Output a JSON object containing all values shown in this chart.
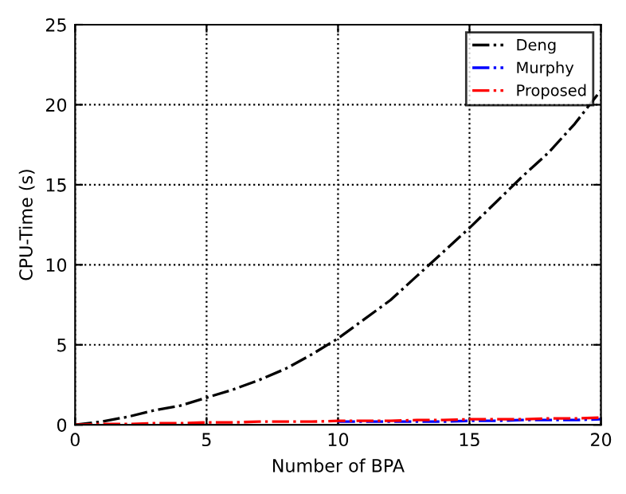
{
  "chart_data": {
    "type": "line",
    "xlabel": "Number of BPA",
    "ylabel": "CPU-Time (s)",
    "x": [
      0,
      1,
      2,
      3,
      4,
      5,
      6,
      7,
      8,
      9,
      10,
      11,
      12,
      13,
      14,
      15,
      16,
      17,
      18,
      19,
      20
    ],
    "series": [
      {
        "name": "Deng",
        "color": "#000000",
        "values": [
          0,
          0.2,
          0.5,
          0.9,
          1.2,
          1.7,
          2.2,
          2.8,
          3.5,
          4.4,
          5.4,
          6.6,
          7.8,
          9.3,
          10.8,
          12.3,
          13.9,
          15.5,
          17.0,
          18.8,
          20.9
        ]
      },
      {
        "name": "Murphy",
        "color": "#0000ff",
        "values": [
          null,
          null,
          null,
          null,
          null,
          null,
          null,
          null,
          null,
          null,
          0.2,
          0.2,
          0.2,
          0.2,
          0.2,
          0.25,
          0.25,
          0.3,
          0.3,
          0.3,
          0.35
        ]
      },
      {
        "name": "Proposed",
        "color": "#ff0000",
        "values": [
          0,
          0.05,
          0.05,
          0.1,
          0.1,
          0.15,
          0.15,
          0.2,
          0.2,
          0.2,
          0.25,
          0.25,
          0.25,
          0.3,
          0.3,
          0.35,
          0.35,
          0.35,
          0.4,
          0.4,
          0.45
        ]
      }
    ],
    "xlim": [
      0,
      20
    ],
    "ylim": [
      0,
      25
    ],
    "xticks": [
      0,
      5,
      10,
      15,
      20
    ],
    "yticks": [
      0,
      5,
      10,
      15,
      20,
      25
    ],
    "grid": true,
    "legend": "top right",
    "line_style": "dashdot",
    "marker": "none"
  }
}
